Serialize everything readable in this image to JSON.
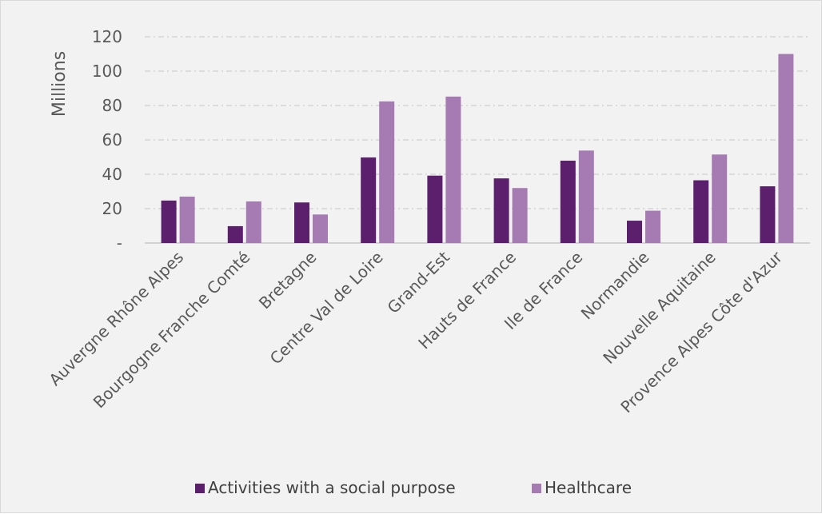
{
  "chart_data": {
    "type": "bar",
    "title": "",
    "xlabel": "",
    "ylabel": "Millions",
    "ylim": [
      0,
      120
    ],
    "yticks": [
      0,
      20,
      40,
      60,
      80,
      100,
      120
    ],
    "ytick_labels": [
      "-",
      "20",
      "40",
      "60",
      "80",
      "100",
      "120"
    ],
    "grid": true,
    "legend_position": "bottom",
    "categories": [
      "Auvergne Rhône Alpes",
      "Bourgogne Franche Comté",
      "Bretagne",
      "Centre Val de Loire",
      "Grand-Est",
      "Hauts de France",
      "Ile de France",
      "Normandie",
      "Nouvelle Aquitaine",
      "Provence Alpes Côte d'Azur"
    ],
    "series": [
      {
        "name": "Activities with a social purpose",
        "color": "#5b1f6e",
        "values": [
          24.7,
          9.8,
          23.6,
          49.8,
          39.2,
          37.6,
          47.9,
          13.0,
          36.5,
          33.0
        ]
      },
      {
        "name": "Healthcare",
        "color": "#a67bb3",
        "values": [
          27.0,
          24.2,
          16.6,
          82.4,
          85.2,
          32.0,
          53.8,
          18.8,
          51.5,
          110.0
        ]
      }
    ]
  }
}
